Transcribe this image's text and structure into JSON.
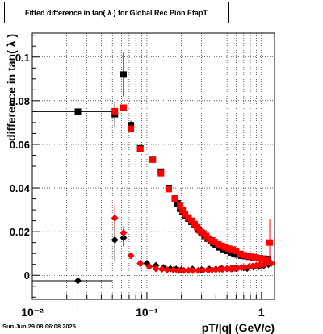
{
  "title": "Fitted difference in tan( λ ) for Global Rec Pion EtapT",
  "footer": "Sun Jun 29 08:06:08 2025",
  "chart_data": {
    "type": "scatter",
    "title": "Fitted difference in tan( λ ) for Global Rec Pion EtapT",
    "xlabel": "pT/|q| (GeV/c)",
    "ylabel": "difference in tan( λ )",
    "xscale": "log",
    "xlim": [
      0.01,
      1.3
    ],
    "ylim": [
      -0.011,
      0.111
    ],
    "grid": true,
    "x_tick_labels": [
      "10⁻²",
      "10⁻¹",
      "1"
    ],
    "y_tick_labels": [
      "0",
      "0.02",
      "0.04",
      "0.06",
      "0.08",
      "0.1"
    ],
    "series": [
      {
        "marker": "square",
        "color": "#000000",
        "points": [
          {
            "x": 0.025,
            "y": 0.075,
            "ey": 0.024,
            "ex_lo": 0.015,
            "ex_hi": 0.025
          },
          {
            "x": 0.0525,
            "y": 0.0738,
            "ey": 0.006,
            "ex_lo": 0.0025,
            "ex_hi": 0.0025
          },
          {
            "x": 0.0625,
            "y": 0.092,
            "ey": 0.01
          },
          {
            "x": 0.0725,
            "y": 0.0688,
            "ey": 0.002
          },
          {
            "x": 0.0875,
            "y": 0.0582
          },
          {
            "x": 0.1125,
            "y": 0.0532
          },
          {
            "x": 0.1325,
            "y": 0.0475
          },
          {
            "x": 0.155,
            "y": 0.04
          },
          {
            "x": 0.185,
            "y": 0.033
          },
          {
            "x": 0.195,
            "y": 0.0305
          },
          {
            "x": 0.205,
            "y": 0.029
          },
          {
            "x": 0.215,
            "y": 0.0275
          },
          {
            "x": 0.23,
            "y": 0.026
          },
          {
            "x": 0.245,
            "y": 0.0245
          },
          {
            "x": 0.26,
            "y": 0.023
          },
          {
            "x": 0.28,
            "y": 0.021
          },
          {
            "x": 0.3,
            "y": 0.0195
          },
          {
            "x": 0.32,
            "y": 0.018
          },
          {
            "x": 0.34,
            "y": 0.0168
          },
          {
            "x": 0.36,
            "y": 0.0158
          },
          {
            "x": 0.38,
            "y": 0.0148
          },
          {
            "x": 0.4,
            "y": 0.0138
          },
          {
            "x": 0.43,
            "y": 0.0128
          },
          {
            "x": 0.46,
            "y": 0.012
          },
          {
            "x": 0.5,
            "y": 0.0112
          },
          {
            "x": 0.54,
            "y": 0.0105
          },
          {
            "x": 0.58,
            "y": 0.0098
          },
          {
            "x": 0.62,
            "y": 0.0095
          },
          {
            "x": 0.67,
            "y": 0.009
          },
          {
            "x": 0.72,
            "y": 0.0088
          },
          {
            "x": 0.78,
            "y": 0.0085
          },
          {
            "x": 0.84,
            "y": 0.0082
          },
          {
            "x": 0.9,
            "y": 0.008
          },
          {
            "x": 0.97,
            "y": 0.0078
          },
          {
            "x": 1.05,
            "y": 0.0076
          },
          {
            "x": 1.13,
            "y": 0.0075
          }
        ]
      },
      {
        "marker": "square",
        "color": "#ff0000",
        "points": [
          {
            "x": 0.0525,
            "y": 0.0752
          },
          {
            "x": 0.0625,
            "y": 0.0768
          },
          {
            "x": 0.0725,
            "y": 0.0672
          },
          {
            "x": 0.0875,
            "y": 0.0578
          },
          {
            "x": 0.1125,
            "y": 0.053
          },
          {
            "x": 0.1325,
            "y": 0.0468
          },
          {
            "x": 0.155,
            "y": 0.0395
          },
          {
            "x": 0.175,
            "y": 0.0352
          },
          {
            "x": 0.195,
            "y": 0.0318
          },
          {
            "x": 0.205,
            "y": 0.0298
          },
          {
            "x": 0.215,
            "y": 0.028
          },
          {
            "x": 0.23,
            "y": 0.0265
          },
          {
            "x": 0.245,
            "y": 0.025
          },
          {
            "x": 0.26,
            "y": 0.0235
          },
          {
            "x": 0.275,
            "y": 0.022
          },
          {
            "x": 0.29,
            "y": 0.0205
          },
          {
            "x": 0.31,
            "y": 0.0192
          },
          {
            "x": 0.33,
            "y": 0.018
          },
          {
            "x": 0.35,
            "y": 0.0168
          },
          {
            "x": 0.37,
            "y": 0.016
          },
          {
            "x": 0.39,
            "y": 0.0152
          },
          {
            "x": 0.42,
            "y": 0.0142
          },
          {
            "x": 0.45,
            "y": 0.0135
          },
          {
            "x": 0.48,
            "y": 0.0128
          },
          {
            "x": 0.52,
            "y": 0.0122
          },
          {
            "x": 0.56,
            "y": 0.0118
          },
          {
            "x": 0.6,
            "y": 0.0112
          },
          {
            "x": 0.65,
            "y": 0.0098
          },
          {
            "x": 0.7,
            "y": 0.0092
          },
          {
            "x": 0.76,
            "y": 0.0088
          },
          {
            "x": 0.82,
            "y": 0.0085
          },
          {
            "x": 0.88,
            "y": 0.0082
          },
          {
            "x": 0.95,
            "y": 0.0078
          },
          {
            "x": 1.02,
            "y": 0.0075
          },
          {
            "x": 1.1,
            "y": 0.0072
          },
          {
            "x": 1.18,
            "y": 0.015,
            "ey": 0.011
          }
        ]
      },
      {
        "marker": "diamond",
        "color": "#000000",
        "points": [
          {
            "x": 0.025,
            "y": -0.0025,
            "ey": 0.015,
            "ex_lo": 0.015,
            "ex_hi": 0.025
          },
          {
            "x": 0.0525,
            "y": 0.0162,
            "ey": 0.01
          },
          {
            "x": 0.0625,
            "y": 0.0172,
            "ey": 0.004
          },
          {
            "x": 0.1,
            "y": 0.0055
          },
          {
            "x": 0.12,
            "y": 0.0045
          },
          {
            "x": 0.14,
            "y": 0.0035
          },
          {
            "x": 0.16,
            "y": 0.003
          },
          {
            "x": 0.18,
            "y": 0.0028
          },
          {
            "x": 0.2,
            "y": 0.0025
          },
          {
            "x": 0.25,
            "y": 0.0028
          },
          {
            "x": 0.3,
            "y": 0.0025
          },
          {
            "x": 0.35,
            "y": 0.0028
          },
          {
            "x": 0.4,
            "y": 0.0028
          },
          {
            "x": 0.45,
            "y": 0.003
          },
          {
            "x": 0.5,
            "y": 0.003
          },
          {
            "x": 0.55,
            "y": 0.003
          },
          {
            "x": 0.6,
            "y": 0.0032
          },
          {
            "x": 0.7,
            "y": 0.0035
          },
          {
            "x": 0.75,
            "y": 0.0032
          },
          {
            "x": 0.85,
            "y": 0.0038
          },
          {
            "x": 0.95,
            "y": 0.004
          },
          {
            "x": 1.05,
            "y": 0.0045
          },
          {
            "x": 1.15,
            "y": 0.005
          }
        ]
      },
      {
        "marker": "diamond",
        "color": "#ff0000",
        "points": [
          {
            "x": 0.0525,
            "y": 0.0262,
            "ey": 0.006
          },
          {
            "x": 0.0625,
            "y": 0.0195,
            "ey": 0.003
          },
          {
            "x": 0.0725,
            "y": 0.009
          },
          {
            "x": 0.0875,
            "y": 0.0055
          },
          {
            "x": 0.105,
            "y": 0.004
          },
          {
            "x": 0.12,
            "y": 0.003
          },
          {
            "x": 0.135,
            "y": 0.0028
          },
          {
            "x": 0.15,
            "y": 0.0025
          },
          {
            "x": 0.17,
            "y": 0.0025
          },
          {
            "x": 0.19,
            "y": 0.0022
          },
          {
            "x": 0.21,
            "y": 0.0022
          },
          {
            "x": 0.23,
            "y": 0.0022
          },
          {
            "x": 0.25,
            "y": 0.0022
          },
          {
            "x": 0.28,
            "y": 0.0022
          },
          {
            "x": 0.31,
            "y": 0.0024
          },
          {
            "x": 0.34,
            "y": 0.0025
          },
          {
            "x": 0.37,
            "y": 0.0025
          },
          {
            "x": 0.4,
            "y": 0.0026
          },
          {
            "x": 0.43,
            "y": 0.0028
          },
          {
            "x": 0.46,
            "y": 0.0028
          },
          {
            "x": 0.5,
            "y": 0.003
          },
          {
            "x": 0.54,
            "y": 0.003
          },
          {
            "x": 0.58,
            "y": 0.0032
          },
          {
            "x": 0.62,
            "y": 0.0033
          },
          {
            "x": 0.67,
            "y": 0.0035
          },
          {
            "x": 0.72,
            "y": 0.0037
          },
          {
            "x": 0.78,
            "y": 0.004
          },
          {
            "x": 0.84,
            "y": 0.0042
          },
          {
            "x": 0.9,
            "y": 0.0045
          },
          {
            "x": 0.97,
            "y": 0.0048
          },
          {
            "x": 1.05,
            "y": 0.005
          },
          {
            "x": 1.15,
            "y": 0.006
          },
          {
            "x": 1.22,
            "y": 0.0055
          }
        ]
      }
    ]
  }
}
